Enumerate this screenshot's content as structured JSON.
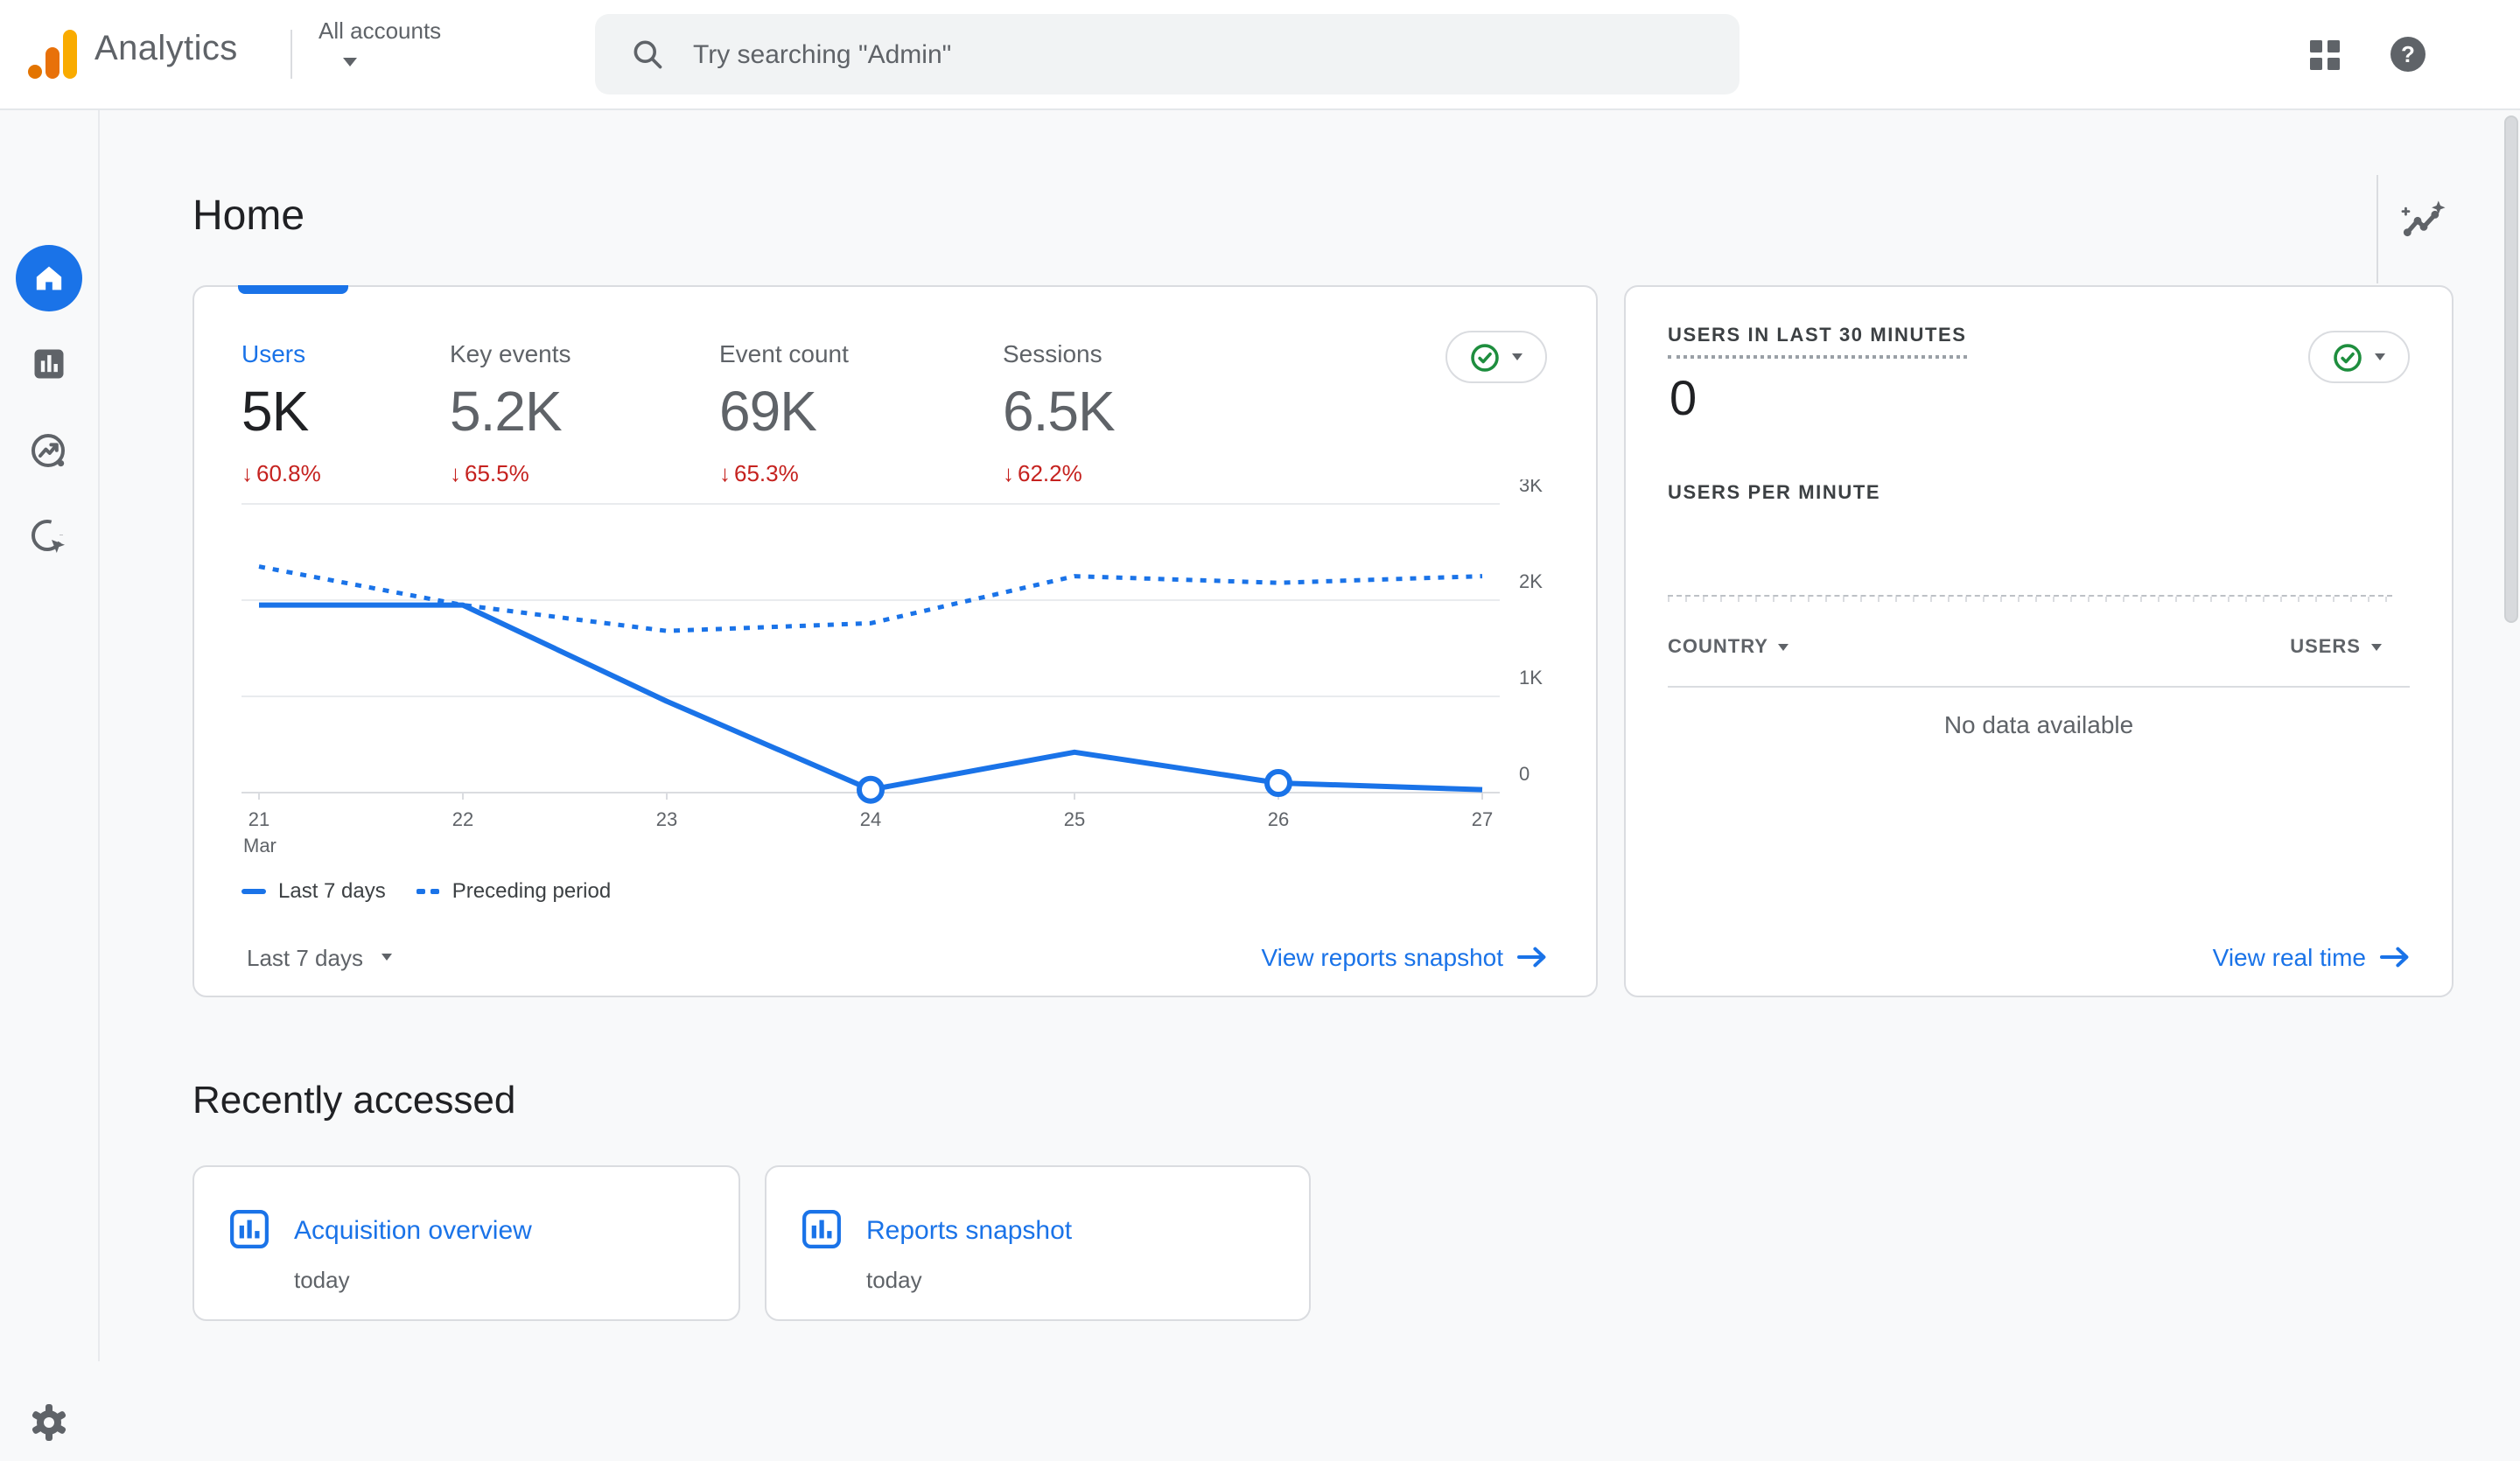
{
  "header": {
    "product_name": "Analytics",
    "account_switcher_label": "All accounts",
    "search_placeholder": "Try searching \"Admin\""
  },
  "sidebar": {
    "items": [
      {
        "name": "home",
        "active": true
      },
      {
        "name": "reports",
        "active": false
      },
      {
        "name": "explore",
        "active": false
      },
      {
        "name": "advertising",
        "active": false
      },
      {
        "name": "admin",
        "active": false
      }
    ]
  },
  "page": {
    "title": "Home"
  },
  "overview_card": {
    "metrics": [
      {
        "label": "Users",
        "value": "5K",
        "delta": "60.8%",
        "direction": "down",
        "active": true
      },
      {
        "label": "Key events",
        "value": "5.2K",
        "delta": "65.5%",
        "direction": "down",
        "active": false
      },
      {
        "label": "Event count",
        "value": "69K",
        "delta": "65.3%",
        "direction": "down",
        "active": false
      },
      {
        "label": "Sessions",
        "value": "6.5K",
        "delta": "62.2%",
        "direction": "down",
        "active": false
      }
    ],
    "delta_arrow": "↓",
    "period_selector": "Last 7 days",
    "footer_link": "View reports snapshot"
  },
  "chart_data": {
    "type": "line",
    "x": [
      "21",
      "22",
      "23",
      "24",
      "25",
      "26",
      "27"
    ],
    "x_month": "Mar",
    "series": [
      {
        "name": "Last 7 days",
        "style": "solid",
        "values": [
          1950,
          1950,
          950,
          30,
          420,
          100,
          30
        ],
        "markers": [
          3,
          5
        ]
      },
      {
        "name": "Preceding period",
        "style": "dashed",
        "values": [
          2350,
          1950,
          1680,
          1760,
          2250,
          2180,
          2250
        ]
      }
    ],
    "ylim": [
      0,
      3000
    ],
    "yticks": [
      "0",
      "1K",
      "2K",
      "3K"
    ],
    "ytick_values": [
      0,
      1000,
      2000,
      3000
    ],
    "ylabel_side": "right",
    "grid": true,
    "legend_position": "bottom",
    "line_color": "#1a73e8"
  },
  "realtime_card": {
    "title": "USERS IN LAST 30 MINUTES",
    "value": "0",
    "subtitle": "USERS PER MINUTE",
    "table": {
      "columns": [
        "COUNTRY",
        "USERS"
      ],
      "empty_message": "No data available"
    },
    "footer_link": "View real time"
  },
  "recent": {
    "heading": "Recently accessed",
    "items": [
      {
        "title": "Acquisition overview",
        "time": "today"
      },
      {
        "title": "Reports snapshot",
        "time": "today"
      }
    ]
  },
  "icons": {
    "logo": "google-analytics-bars",
    "search": "magnifier",
    "apps": "grid-2x2",
    "help": "question-circle",
    "home": "house",
    "reports": "bar-chart-square",
    "explore": "compass-trend",
    "advertising": "target-cursor",
    "admin": "gear",
    "insights": "trend-sparkle",
    "status": "green-check-circle",
    "link_arrow": "arrow-right"
  },
  "colors": {
    "accent_blue": "#1a73e8",
    "delta_red": "#c5221f",
    "check_green": "#1e8e3e",
    "text_dark": "#202124",
    "text_gray": "#5f6368",
    "border": "#dadce0",
    "background": "#f8f9fa",
    "search_bg": "#f1f3f4"
  }
}
